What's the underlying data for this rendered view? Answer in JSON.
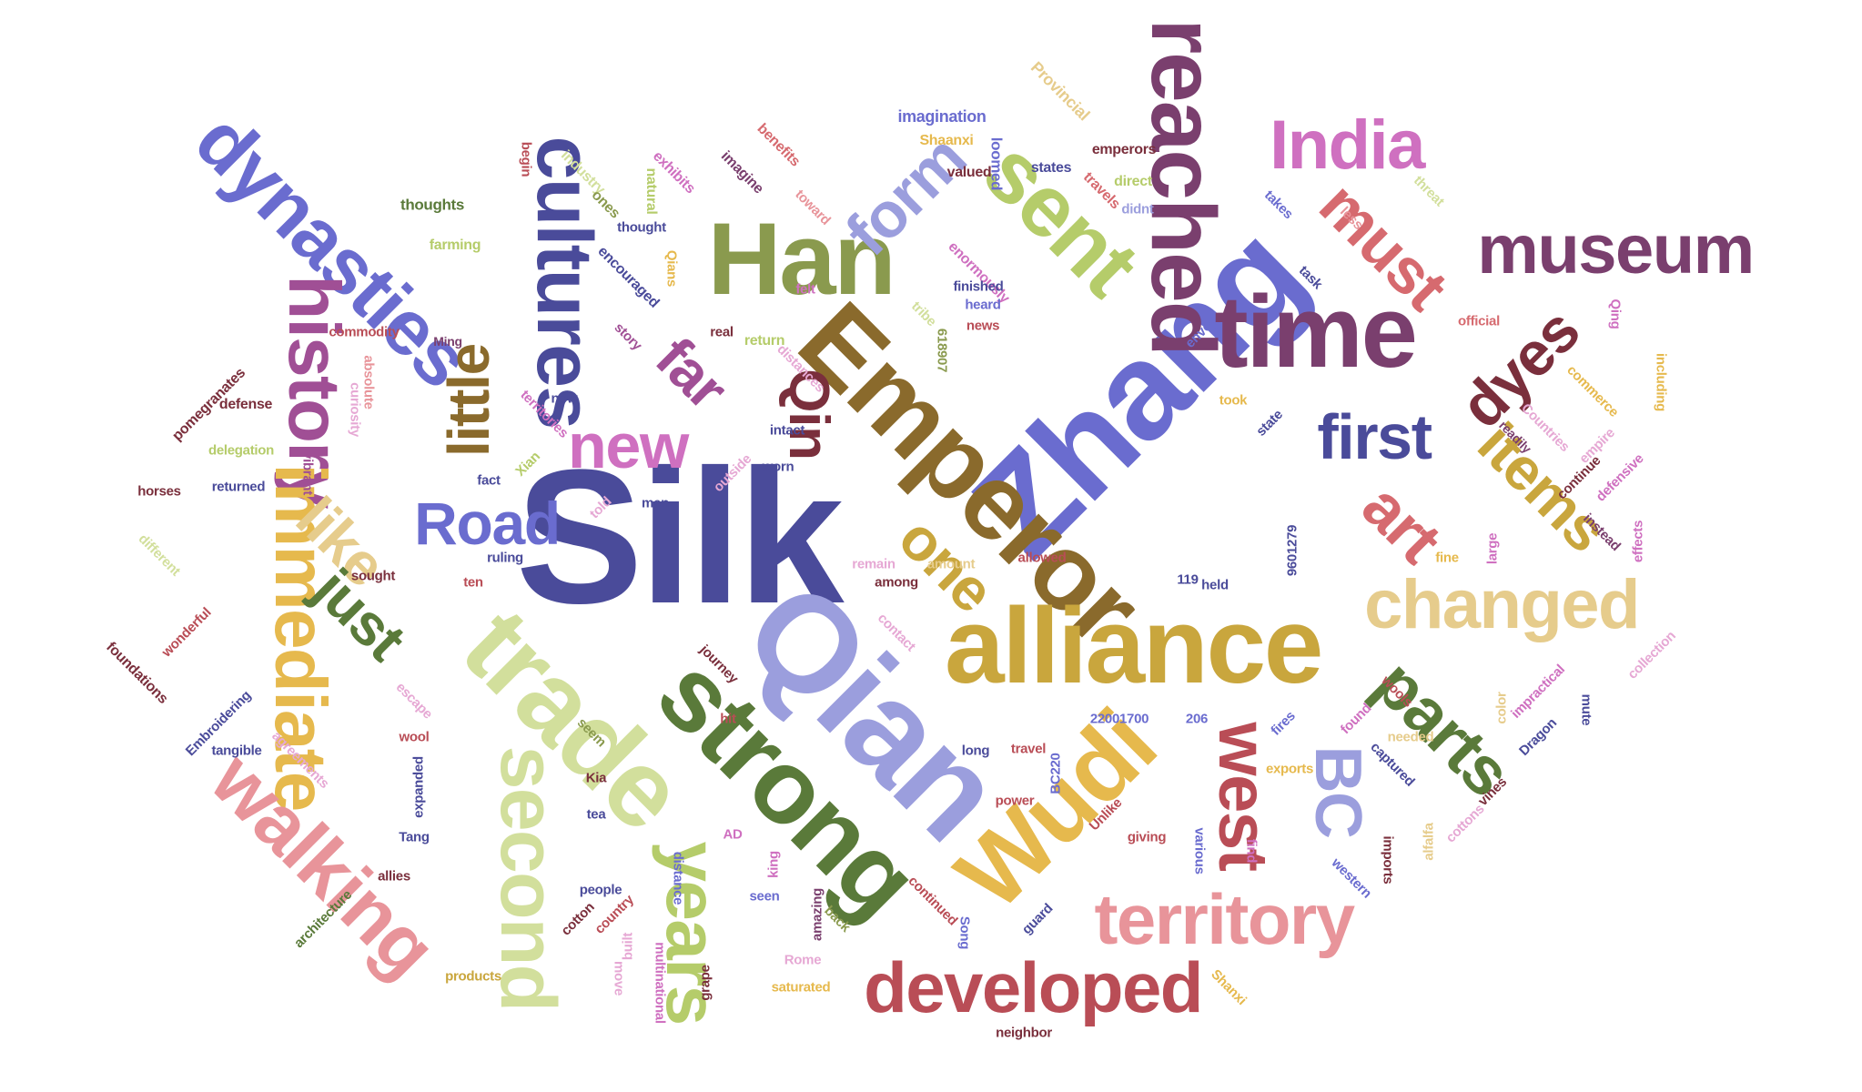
{
  "palette": {
    "navy": "#4a4b9a",
    "periwinkle": "#6a6ccf",
    "lavender": "#9b9edd",
    "olive": "#8a9a4e",
    "darkgreen": "#5a7a3a",
    "lime": "#b5cc6a",
    "palelime": "#d2df9c",
    "brown": "#8a6a2c",
    "gold": "#c9a63d",
    "amber": "#e6b94d",
    "tan": "#e6cc8c",
    "maroon": "#7a2f3c",
    "red": "#b94d56",
    "salmon": "#d66a6f",
    "pink": "#e8949a",
    "plum": "#7a3f6e",
    "purple": "#a04f95",
    "orchid": "#cf70c0",
    "lightpink": "#e6a8d4"
  },
  "words": [
    {
      "text": "Silk",
      "color": "#4a4b9a"
    },
    {
      "text": "Zhang",
      "color": "#6a6ccf"
    },
    {
      "text": "Qian",
      "color": "#9b9edd"
    },
    {
      "text": "Emperor",
      "color": "#8a6a2c"
    },
    {
      "text": "alliance",
      "color": "#c9a63d"
    },
    {
      "text": "strong",
      "color": "#5a7a3a"
    },
    {
      "text": "trade",
      "color": "#d2df9c"
    },
    {
      "text": "Wudi",
      "color": "#e6b94d"
    },
    {
      "text": "time",
      "color": "#7a3f6e"
    },
    {
      "text": "Han",
      "color": "#8a9a4e"
    },
    {
      "text": "reached",
      "color": "#7a3f6e"
    },
    {
      "text": "sent",
      "color": "#b5cc6a"
    },
    {
      "text": "cultures",
      "color": "#4a4b9a"
    },
    {
      "text": "dynasties",
      "color": "#6a6ccf"
    },
    {
      "text": "history",
      "color": "#a04f95"
    },
    {
      "text": "immediate",
      "color": "#e6b94d"
    },
    {
      "text": "second",
      "color": "#d2df9c"
    },
    {
      "text": "walking",
      "color": "#e8949a"
    },
    {
      "text": "years",
      "color": "#b5cc6a"
    },
    {
      "text": "territory",
      "color": "#e8949a"
    },
    {
      "text": "developed",
      "color": "#b94d56"
    },
    {
      "text": "west",
      "color": "#b94d56"
    },
    {
      "text": "BC",
      "color": "#9b9edd"
    },
    {
      "text": "parts",
      "color": "#5a7a3a"
    },
    {
      "text": "changed",
      "color": "#e6cc8c"
    },
    {
      "text": "museum",
      "color": "#7a3f6e"
    },
    {
      "text": "India",
      "color": "#cf70c0"
    },
    {
      "text": "must",
      "color": "#d66a6f"
    },
    {
      "text": "first",
      "color": "#4a4b9a"
    },
    {
      "text": "items",
      "color": "#c9a63d"
    },
    {
      "text": "art",
      "color": "#d66a6f"
    },
    {
      "text": "dyes",
      "color": "#7a2f3c"
    },
    {
      "text": "form",
      "color": "#9b9edd"
    },
    {
      "text": "one",
      "color": "#c9a63d"
    },
    {
      "text": "Qin",
      "color": "#7a2f3c"
    },
    {
      "text": "new",
      "color": "#cf70c0"
    },
    {
      "text": "far",
      "color": "#a04f95"
    },
    {
      "text": "little",
      "color": "#8a6a2c"
    },
    {
      "text": "Road",
      "color": "#6a6ccf"
    },
    {
      "text": "like",
      "color": "#e6cc8c"
    },
    {
      "text": "just",
      "color": "#5a7a3a"
    },
    {
      "text": "imagination",
      "color": "#6a6ccf"
    },
    {
      "text": "Provincial",
      "color": "#e6cc8c"
    },
    {
      "text": "loomed",
      "color": "#6a6ccf"
    },
    {
      "text": "Shaanxi",
      "color": "#e6b94d"
    },
    {
      "text": "valued",
      "color": "#7a2f3c"
    },
    {
      "text": "emperors",
      "color": "#7a2f3c"
    },
    {
      "text": "travels",
      "color": "#d66a6f"
    },
    {
      "text": "direct",
      "color": "#b5cc6a"
    },
    {
      "text": "didnt",
      "color": "#9b9edd"
    },
    {
      "text": "states",
      "color": "#4a4b9a"
    },
    {
      "text": "less",
      "color": "#e8949a"
    },
    {
      "text": "threat",
      "color": "#d2df9c"
    },
    {
      "text": "takes",
      "color": "#6a6ccf"
    },
    {
      "text": "benefits",
      "color": "#d66a6f"
    },
    {
      "text": "imagine",
      "color": "#7a3f6e"
    },
    {
      "text": "exhibits",
      "color": "#cf70c0"
    },
    {
      "text": "natural",
      "color": "#b5cc6a"
    },
    {
      "text": "industry",
      "color": "#d2df9c"
    },
    {
      "text": "begin",
      "color": "#b94d56"
    },
    {
      "text": "ones",
      "color": "#8a9a4e"
    },
    {
      "text": "toward",
      "color": "#e8949a"
    },
    {
      "text": "thoughts",
      "color": "#5a7a3a"
    },
    {
      "text": "thought",
      "color": "#4a4b9a"
    },
    {
      "text": "farming",
      "color": "#b5cc6a"
    },
    {
      "text": "encouraged",
      "color": "#4a4b9a"
    },
    {
      "text": "Qians",
      "color": "#e6b94d"
    },
    {
      "text": "enormously",
      "color": "#cf70c0"
    },
    {
      "text": "finished",
      "color": "#4a4b9a"
    },
    {
      "text": "task",
      "color": "#4a4b9a"
    },
    {
      "text": "heard",
      "color": "#6a6ccf"
    },
    {
      "text": "news",
      "color": "#b94d56"
    },
    {
      "text": "felt",
      "color": "#cf70c0"
    },
    {
      "text": "tribe",
      "color": "#d2df9c"
    },
    {
      "text": "real",
      "color": "#7a2f3c"
    },
    {
      "text": "story",
      "color": "#a04f95"
    },
    {
      "text": "return",
      "color": "#b5cc6a"
    },
    {
      "text": "distances",
      "color": "#e6a8d4"
    },
    {
      "text": "618907",
      "color": "#8a9a4e"
    },
    {
      "text": "envoy",
      "color": "#6a6ccf"
    },
    {
      "text": "official",
      "color": "#d66a6f"
    },
    {
      "text": "Qing",
      "color": "#cf70c0"
    },
    {
      "text": "commerce",
      "color": "#e6b94d"
    },
    {
      "text": "including",
      "color": "#e6b94d"
    },
    {
      "text": "empire",
      "color": "#e6a8d4"
    },
    {
      "text": "commodity",
      "color": "#b94d56"
    },
    {
      "text": "Ming",
      "color": "#7a3f6e"
    },
    {
      "text": "absolute",
      "color": "#e8949a"
    },
    {
      "text": "curiosity",
      "color": "#e6a8d4"
    },
    {
      "text": "territories",
      "color": "#cf70c0"
    },
    {
      "text": "now",
      "color": "#4a4b9a"
    },
    {
      "text": "took",
      "color": "#e6b94d"
    },
    {
      "text": "state",
      "color": "#4a4b9a"
    },
    {
      "text": "Countries",
      "color": "#e6a8d4"
    },
    {
      "text": "readily",
      "color": "#7a3f6e"
    },
    {
      "text": "continue",
      "color": "#7a2f3c"
    },
    {
      "text": "defensive",
      "color": "#cf70c0"
    },
    {
      "text": "pomegranates",
      "color": "#7a2f3c"
    },
    {
      "text": "defense",
      "color": "#7a2f3c"
    },
    {
      "text": "delegation",
      "color": "#b5cc6a"
    },
    {
      "text": "horses",
      "color": "#7a2f3c"
    },
    {
      "text": "returned",
      "color": "#4a4b9a"
    },
    {
      "text": "vibrant",
      "color": "#a04f95"
    },
    {
      "text": "Xian",
      "color": "#b5cc6a"
    },
    {
      "text": "fact",
      "color": "#4a4b9a"
    },
    {
      "text": "intact",
      "color": "#4a4b9a"
    },
    {
      "text": "outside",
      "color": "#e6a8d4"
    },
    {
      "text": "worn",
      "color": "#4a4b9a"
    },
    {
      "text": "men",
      "color": "#4a4b9a"
    },
    {
      "text": "told",
      "color": "#e6a8d4"
    },
    {
      "text": "ruling",
      "color": "#4a4b9a"
    },
    {
      "text": "ten",
      "color": "#b94d56"
    },
    {
      "text": "sought",
      "color": "#7a2f3c"
    },
    {
      "text": "different",
      "color": "#d2df9c"
    },
    {
      "text": "wonderful",
      "color": "#b94d56"
    },
    {
      "text": "remain",
      "color": "#e6a8d4"
    },
    {
      "text": "amount",
      "color": "#e6cc8c"
    },
    {
      "text": "among",
      "color": "#7a2f3c"
    },
    {
      "text": "allowed",
      "color": "#b94d56"
    },
    {
      "text": "119",
      "color": "#4a4b9a"
    },
    {
      "text": "held",
      "color": "#4a4b9a"
    },
    {
      "text": "9601279",
      "color": "#4a4b9a"
    },
    {
      "text": "fine",
      "color": "#e6b94d"
    },
    {
      "text": "large",
      "color": "#cf70c0"
    },
    {
      "text": "instead",
      "color": "#7a3f6e"
    },
    {
      "text": "effects",
      "color": "#cf70c0"
    },
    {
      "text": "collection",
      "color": "#e6a8d4"
    },
    {
      "text": "mute",
      "color": "#4a4b9a"
    },
    {
      "text": "impractical",
      "color": "#cf70c0"
    },
    {
      "text": "color",
      "color": "#e6cc8c"
    },
    {
      "text": "Dragon",
      "color": "#4a4b9a"
    },
    {
      "text": "vines",
      "color": "#7a2f3c"
    },
    {
      "text": "alfalfa",
      "color": "#e6cc8c"
    },
    {
      "text": "contact",
      "color": "#e6a8d4"
    },
    {
      "text": "foundations",
      "color": "#7a2f3c"
    },
    {
      "text": "Embroidering",
      "color": "#4a4b9a"
    },
    {
      "text": "tangible",
      "color": "#4a4b9a"
    },
    {
      "text": "agreements",
      "color": "#e6a8d4"
    },
    {
      "text": "journey",
      "color": "#7a2f3c"
    },
    {
      "text": "hit",
      "color": "#b94d56"
    },
    {
      "text": "seem",
      "color": "#8a9a4e"
    },
    {
      "text": "escape",
      "color": "#e6a8d4"
    },
    {
      "text": "wool",
      "color": "#b94d56"
    },
    {
      "text": "expanded",
      "color": "#4a4b9a"
    },
    {
      "text": "long",
      "color": "#4a4b9a"
    },
    {
      "text": "travel",
      "color": "#b94d56"
    },
    {
      "text": "BC220",
      "color": "#6a6ccf"
    },
    {
      "text": "22001700",
      "color": "#6a6ccf"
    },
    {
      "text": "206",
      "color": "#6a6ccf"
    },
    {
      "text": "power",
      "color": "#b94d56"
    },
    {
      "text": "Unlike",
      "color": "#b94d56"
    },
    {
      "text": "fires",
      "color": "#6a6ccf"
    },
    {
      "text": "wools",
      "color": "#b94d56"
    },
    {
      "text": "needed",
      "color": "#e6cc8c"
    },
    {
      "text": "captured",
      "color": "#4a4b9a"
    },
    {
      "text": "exports",
      "color": "#e6b94d"
    },
    {
      "text": "found",
      "color": "#cf70c0"
    },
    {
      "text": "imports",
      "color": "#7a2f3c"
    },
    {
      "text": "western",
      "color": "#6a6ccf"
    },
    {
      "text": "cottons",
      "color": "#e6a8d4"
    },
    {
      "text": "various",
      "color": "#6a6ccf"
    },
    {
      "text": "giving",
      "color": "#b94d56"
    },
    {
      "text": "find",
      "color": "#cf70c0"
    },
    {
      "text": "guard",
      "color": "#4a4b9a"
    },
    {
      "text": "continued",
      "color": "#b94d56"
    },
    {
      "text": "Song",
      "color": "#6a6ccf"
    },
    {
      "text": "back",
      "color": "#8a9a4e"
    },
    {
      "text": "amazing",
      "color": "#7a3f6e"
    },
    {
      "text": "seen",
      "color": "#6a6ccf"
    },
    {
      "text": "king",
      "color": "#cf70c0"
    },
    {
      "text": "AD",
      "color": "#cf70c0"
    },
    {
      "text": "Rome",
      "color": "#e6a8d4"
    },
    {
      "text": "Kia",
      "color": "#7a2f3c"
    },
    {
      "text": "tea",
      "color": "#4a4b9a"
    },
    {
      "text": "Tang",
      "color": "#4a4b9a"
    },
    {
      "text": "allies",
      "color": "#7a2f3c"
    },
    {
      "text": "architecture",
      "color": "#5a7a3a"
    },
    {
      "text": "people",
      "color": "#4a4b9a"
    },
    {
      "text": "country",
      "color": "#b94d56"
    },
    {
      "text": "cotton",
      "color": "#7a2f3c"
    },
    {
      "text": "built",
      "color": "#e6a8d4"
    },
    {
      "text": "distance",
      "color": "#6a6ccf"
    },
    {
      "text": "move",
      "color": "#e6a8d4"
    },
    {
      "text": "products",
      "color": "#c9a63d"
    },
    {
      "text": "multinational",
      "color": "#cf70c0"
    },
    {
      "text": "grape",
      "color": "#7a2f3c"
    },
    {
      "text": "saturated",
      "color": "#e6b94d"
    },
    {
      "text": "neighbor",
      "color": "#7a2f3c"
    },
    {
      "text": "Shanxi",
      "color": "#e6b94d"
    }
  ]
}
